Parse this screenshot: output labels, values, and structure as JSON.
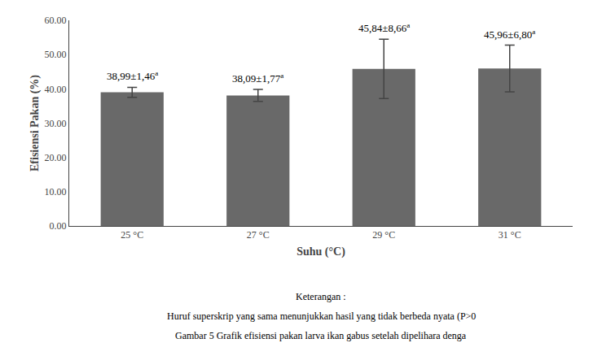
{
  "chart_data": {
    "type": "bar",
    "categories": [
      "25 °C",
      "27 °C",
      "29 °C",
      "31 °C"
    ],
    "values": [
      38.99,
      38.09,
      45.84,
      45.96
    ],
    "errors": [
      1.46,
      1.77,
      8.66,
      6.8
    ],
    "color": "#696969",
    "xlabel": "Suhu (°C)",
    "ylabel": "Efisiensi Pakan (%)",
    "ylim": [
      0,
      60
    ],
    "yticks": [
      {
        "value": 0,
        "label": "0.00"
      },
      {
        "value": 10,
        "label": "10.00"
      },
      {
        "value": 20,
        "label": "20.00"
      },
      {
        "value": 30,
        "label": "30.00"
      },
      {
        "value": 40,
        "label": "40.00"
      },
      {
        "value": 50,
        "label": "50.00"
      },
      {
        "value": 60,
        "label": "60.00"
      }
    ],
    "grid": false,
    "annotations": [
      {
        "category": "25 °C",
        "text": "38,99±1,46",
        "superscript": "a"
      },
      {
        "category": "27 °C",
        "text": "38,09±1,77",
        "superscript": "a"
      },
      {
        "category": "29 °C",
        "text": "45,84±8,66",
        "superscript": "a"
      },
      {
        "category": "31 °C",
        "text": "45,96±6,80",
        "superscript": "a"
      }
    ],
    "caption": [
      "Keterangan :",
      "Huruf superskrip yang sama menunjukkan hasil yang tidak berbeda nyata (P>0",
      "Gambar 5 Grafik efisiensi pakan larva ikan gabus setelah dipelihara denga"
    ]
  }
}
